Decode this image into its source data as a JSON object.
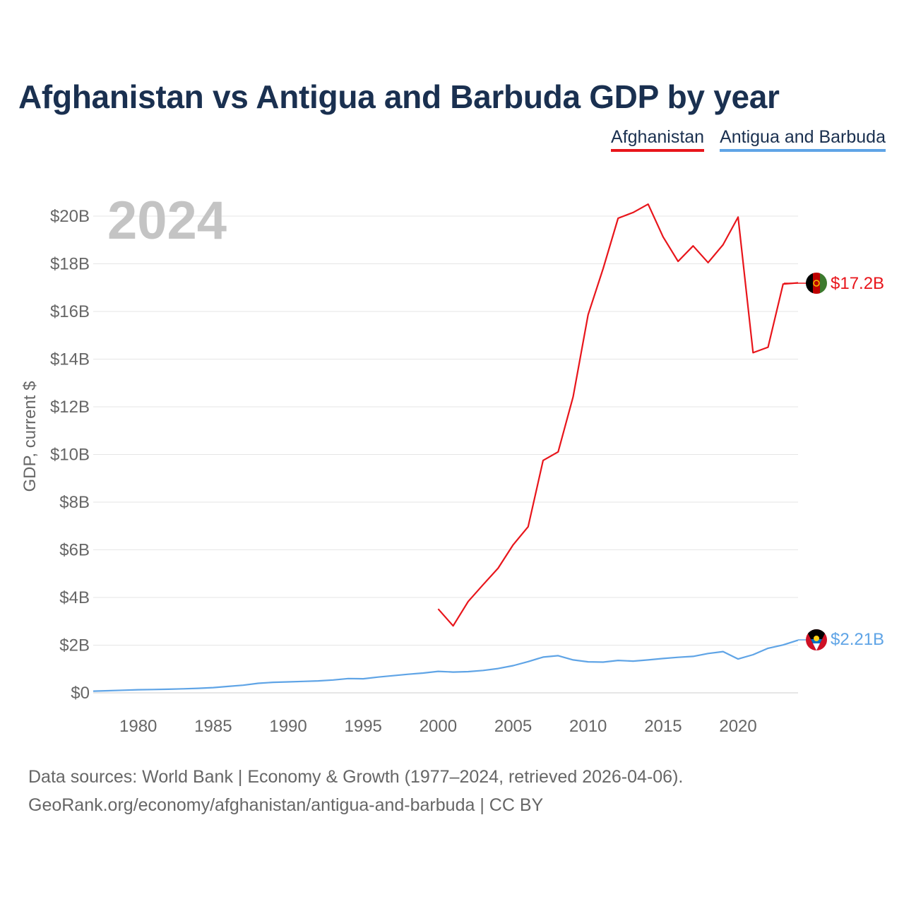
{
  "title": "Afghanistan vs Antigua and Barbuda GDP by year",
  "legend": [
    {
      "label": "Afghanistan",
      "color": "#e8151b"
    },
    {
      "label": "Antigua and Barbuda",
      "color": "#5fa4e6"
    }
  ],
  "year_watermark": "2024",
  "end_labels": {
    "afghanistan": "$17.2B",
    "antigua": "$2.21B"
  },
  "source_line1": "Data sources: World Bank | Economy & Growth (1977–2024, retrieved 2026-04-06).",
  "source_line2": "GeoRank.org/economy/afghanistan/antigua-and-barbuda | CC BY",
  "chart_data": {
    "type": "line",
    "title": "Afghanistan vs Antigua and Barbuda GDP by year",
    "xlabel": "",
    "ylabel": "GDP, current $",
    "xlim": [
      1977,
      2024
    ],
    "ylim": [
      0,
      20
    ],
    "y_unit": "billions USD",
    "y_ticks": [
      0,
      2,
      4,
      6,
      8,
      10,
      12,
      14,
      16,
      18,
      20
    ],
    "y_tick_labels": [
      "$0",
      "$2B",
      "$4B",
      "$6B",
      "$8B",
      "$10B",
      "$12B",
      "$14B",
      "$16B",
      "$18B",
      "$20B"
    ],
    "x_ticks": [
      1980,
      1985,
      1990,
      1995,
      2000,
      2005,
      2010,
      2015,
      2020
    ],
    "x_tick_labels": [
      "1980",
      "1985",
      "1990",
      "1995",
      "2000",
      "2005",
      "2010",
      "2015",
      "2020"
    ],
    "grid": true,
    "series": [
      {
        "name": "Afghanistan",
        "color": "#e8151b",
        "x": [
          2000,
          2001,
          2002,
          2003,
          2004,
          2005,
          2006,
          2007,
          2008,
          2009,
          2010,
          2011,
          2012,
          2013,
          2014,
          2015,
          2016,
          2017,
          2018,
          2019,
          2020,
          2021,
          2022,
          2023,
          2024
        ],
        "values": [
          3.52,
          2.81,
          3.83,
          4.54,
          5.23,
          6.21,
          6.97,
          9.75,
          10.11,
          12.42,
          15.86,
          17.8,
          19.91,
          20.15,
          20.5,
          19.13,
          18.1,
          18.75,
          18.05,
          18.8,
          19.96,
          14.27,
          14.5,
          17.15,
          17.2
        ]
      },
      {
        "name": "Antigua and Barbuda",
        "color": "#5fa4e6",
        "x": [
          1977,
          1978,
          1979,
          1980,
          1981,
          1982,
          1983,
          1984,
          1985,
          1986,
          1987,
          1988,
          1989,
          1990,
          1991,
          1992,
          1993,
          1994,
          1995,
          1996,
          1997,
          1998,
          1999,
          2000,
          2001,
          2002,
          2003,
          2004,
          2005,
          2006,
          2007,
          2008,
          2009,
          2010,
          2011,
          2012,
          2013,
          2014,
          2015,
          2016,
          2017,
          2018,
          2019,
          2020,
          2021,
          2022,
          2023,
          2024
        ],
        "values": [
          0.07,
          0.09,
          0.11,
          0.13,
          0.14,
          0.15,
          0.17,
          0.19,
          0.22,
          0.27,
          0.32,
          0.4,
          0.44,
          0.46,
          0.48,
          0.5,
          0.54,
          0.6,
          0.59,
          0.66,
          0.72,
          0.78,
          0.83,
          0.9,
          0.87,
          0.89,
          0.94,
          1.02,
          1.14,
          1.31,
          1.5,
          1.56,
          1.38,
          1.3,
          1.29,
          1.36,
          1.33,
          1.38,
          1.44,
          1.49,
          1.53,
          1.65,
          1.73,
          1.42,
          1.6,
          1.87,
          2.01,
          2.21
        ]
      }
    ]
  }
}
